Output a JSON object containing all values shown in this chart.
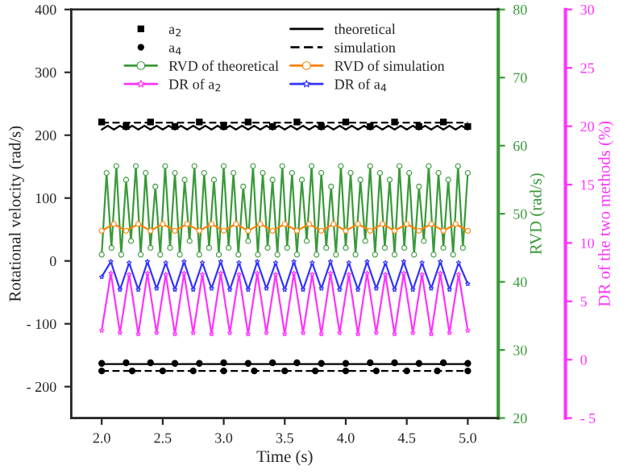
{
  "chart_data": {
    "type": "line",
    "xlabel": "Time (s)",
    "ylabel": "Rotational velocity (rad/s)",
    "y2label": "RVD (rad/s)",
    "y3label": "DR of the two methods (%)",
    "xlim": [
      1.75,
      5.25
    ],
    "xticks": [
      {
        "value": 2,
        "label": "2.0"
      },
      {
        "value": 2.5,
        "label": "2.5"
      },
      {
        "value": 3,
        "label": "3.0"
      },
      {
        "value": 3.5,
        "label": "3.5"
      },
      {
        "value": 4,
        "label": "4.0"
      },
      {
        "value": 4.5,
        "label": "4.5"
      },
      {
        "value": 5,
        "label": "5.0"
      }
    ],
    "ylim": [
      -250,
      400
    ],
    "yticks": [
      {
        "value": -200,
        "label": "- 200"
      },
      {
        "value": -100,
        "label": "- 100"
      },
      0,
      100,
      200,
      300,
      400
    ],
    "y2lim": [
      20,
      80
    ],
    "y2ticks": [
      20,
      30,
      40,
      50,
      60,
      70,
      80
    ],
    "y3lim": [
      -5,
      30
    ],
    "y3ticks": [
      {
        "value": -5,
        "label": "- 5"
      },
      0,
      5,
      10,
      15,
      20,
      25,
      30
    ],
    "legend": "top",
    "series": [
      {
        "name": "a$_{2}$",
        "type": "scatter",
        "marker": "square",
        "color": "#000000",
        "x": [
          2.0,
          2.2,
          2.4,
          2.6,
          2.8,
          3.0,
          3.2,
          3.4,
          3.6,
          3.8,
          4.0,
          4.2,
          4.4,
          4.6,
          4.8,
          5.0
        ],
        "values": [
          221,
          214,
          221,
          214,
          221,
          214,
          221,
          214,
          221,
          214,
          221,
          214,
          221,
          214,
          221,
          214
        ]
      },
      {
        "name": "a$_{4}$",
        "type": "scatter",
        "marker": "circle",
        "color": "#000000",
        "x": [
          2.0,
          2.2,
          2.4,
          2.6,
          2.8,
          3.0,
          3.2,
          3.4,
          3.6,
          3.8,
          4.0,
          4.2,
          4.4,
          4.6,
          4.8,
          5.0,
          2.0,
          2.25,
          2.5,
          2.75,
          3.0,
          3.25,
          3.5,
          3.75,
          4.0,
          4.25,
          4.5,
          4.75,
          5.0
        ],
        "values": [
          -163,
          -162,
          -162,
          -163,
          -163,
          -162,
          -163,
          -162,
          -162,
          -163,
          -163,
          -162,
          -162,
          -163,
          -162,
          -163,
          -175,
          -175,
          -175,
          -175,
          -175,
          -175,
          -175,
          -175,
          -175,
          -175,
          -175,
          -175,
          -175
        ]
      },
      {
        "name": "RVD of theoretical",
        "axis": "y2",
        "marker": "circle",
        "line_style": "solid",
        "color": "#3a9a3a",
        "x": [
          2.0,
          2.04,
          2.08,
          2.12,
          2.16,
          2.2,
          2.24,
          2.28,
          2.32,
          2.36,
          2.4,
          2.44,
          2.48,
          2.52,
          2.56,
          2.6,
          2.64,
          2.68,
          2.72,
          2.76,
          2.8,
          2.84,
          2.88,
          2.92,
          2.96,
          3.0,
          3.04,
          3.08,
          3.12,
          3.16,
          3.2,
          3.24,
          3.28,
          3.32,
          3.36,
          3.4,
          3.44,
          3.48,
          3.52,
          3.56,
          3.6,
          3.64,
          3.68,
          3.72,
          3.76,
          3.8,
          3.84,
          3.88,
          3.92,
          3.96,
          4.0,
          4.04,
          4.08,
          4.12,
          4.16,
          4.2,
          4.24,
          4.28,
          4.32,
          4.36,
          4.4,
          4.44,
          4.48,
          4.52,
          4.56,
          4.6,
          4.64,
          4.68,
          4.72,
          4.76,
          4.8,
          4.84,
          4.88,
          4.92,
          4.96,
          5.0
        ],
        "values": [
          44,
          56,
          45,
          57,
          44,
          55,
          46,
          57,
          44,
          56,
          45,
          54,
          44,
          57,
          45,
          56,
          44,
          55,
          46,
          57,
          44,
          56,
          45,
          55,
          44,
          57,
          45,
          56,
          44,
          54,
          46,
          57,
          44,
          56,
          45,
          55,
          44,
          57,
          45,
          56,
          44,
          55,
          46,
          57,
          44,
          56,
          45,
          54,
          44,
          57,
          45,
          56,
          44,
          55,
          46,
          57,
          44,
          56,
          45,
          55,
          44,
          57,
          45,
          56,
          44,
          54,
          46,
          57,
          44,
          56,
          45,
          55,
          44,
          57,
          45,
          56
        ]
      },
      {
        "name": "DR of a$_{2}$",
        "axis": "y3",
        "marker": "star",
        "line_style": "solid",
        "color": "#ff33ff",
        "x": [
          2.0,
          2.075,
          2.15,
          2.225,
          2.3,
          2.375,
          2.45,
          2.525,
          2.6,
          2.675,
          2.75,
          2.825,
          2.9,
          2.975,
          3.05,
          3.125,
          3.2,
          3.275,
          3.35,
          3.425,
          3.5,
          3.575,
          3.65,
          3.725,
          3.8,
          3.875,
          3.95,
          4.025,
          4.1,
          4.175,
          4.25,
          4.325,
          4.4,
          4.475,
          4.55,
          4.625,
          4.7,
          4.775,
          4.85,
          4.925,
          5.0
        ],
        "values": [
          2.5,
          7.4,
          2.3,
          7.3,
          2.2,
          7.4,
          2.3,
          7.3,
          2.2,
          7.4,
          2.3,
          7.3,
          2.2,
          7.4,
          2.3,
          7.3,
          2.2,
          7.4,
          2.3,
          7.3,
          2.2,
          7.4,
          2.3,
          7.3,
          2.2,
          7.4,
          2.3,
          7.3,
          2.2,
          7.4,
          2.3,
          7.3,
          2.2,
          7.4,
          2.3,
          7.3,
          2.2,
          7.4,
          2.3,
          7.3,
          2.5
        ]
      },
      {
        "name": "theoretical",
        "marker": "none",
        "line_style": "solid",
        "color": "#000000",
        "x": [
          2.0,
          2.05,
          2.1,
          2.15,
          2.2,
          2.25,
          2.3,
          2.35,
          2.4,
          2.45,
          2.5,
          2.55,
          2.6,
          2.65,
          2.7,
          2.75,
          2.8,
          2.85,
          2.9,
          2.95,
          3.0,
          3.05,
          3.1,
          3.15,
          3.2,
          3.25,
          3.3,
          3.35,
          3.4,
          3.45,
          3.5,
          3.55,
          3.6,
          3.65,
          3.7,
          3.75,
          3.8,
          3.85,
          3.9,
          3.95,
          4.0,
          4.05,
          4.1,
          4.15,
          4.2,
          4.25,
          4.3,
          4.35,
          4.4,
          4.45,
          4.5,
          4.55,
          4.6,
          4.65,
          4.7,
          4.75,
          4.8,
          4.85,
          4.9,
          4.95,
          5.0
        ],
        "values": [
          209,
          215,
          209,
          215,
          209,
          215,
          209,
          215,
          209,
          215,
          209,
          215,
          209,
          215,
          209,
          215,
          209,
          215,
          209,
          215,
          209,
          215,
          209,
          215,
          209,
          215,
          209,
          215,
          209,
          215,
          209,
          215,
          209,
          215,
          209,
          215,
          209,
          215,
          209,
          215,
          209,
          215,
          209,
          215,
          209,
          215,
          209,
          215,
          209,
          215,
          209,
          215,
          209,
          215,
          209,
          215,
          209,
          215,
          209,
          215,
          209
        ]
      },
      {
        "name": "simulation",
        "marker": "none",
        "line_style": "dashed",
        "color": "#000000",
        "x": [
          2.0,
          2.25,
          2.5,
          2.75,
          3.0,
          3.25,
          3.5,
          3.75,
          4.0,
          4.25,
          4.5,
          4.75,
          5.0
        ],
        "values": [
          220,
          220,
          220,
          220,
          220,
          220,
          220,
          220,
          220,
          220,
          220,
          220,
          220
        ]
      },
      {
        "name": "RVD of simulation",
        "axis": "y2",
        "marker": "circle",
        "line_style": "solid",
        "color": "#ff8000",
        "x": [
          2.0,
          2.1,
          2.2,
          2.3,
          2.4,
          2.5,
          2.6,
          2.7,
          2.8,
          2.9,
          3.0,
          3.1,
          3.2,
          3.3,
          3.4,
          3.5,
          3.6,
          3.7,
          3.8,
          3.9,
          4.0,
          4.1,
          4.2,
          4.3,
          4.4,
          4.5,
          4.6,
          4.7,
          4.8,
          4.9,
          5.0
        ],
        "values": [
          47.5,
          48.5,
          47.5,
          48.5,
          47.5,
          48.5,
          47.5,
          48.5,
          47.5,
          48.5,
          47.5,
          48.5,
          47.5,
          48.5,
          47.5,
          48.5,
          47.5,
          48.5,
          47.5,
          48.5,
          47.5,
          48.5,
          47.5,
          48.5,
          47.5,
          48.5,
          47.5,
          48.5,
          47.5,
          48.5,
          47.5
        ]
      },
      {
        "name": "DR of a$_{4}$",
        "axis": "y3",
        "marker": "star",
        "line_style": "solid",
        "color": "#3333ff",
        "x": [
          2.0,
          2.075,
          2.15,
          2.225,
          2.3,
          2.375,
          2.45,
          2.525,
          2.6,
          2.675,
          2.75,
          2.825,
          2.9,
          2.975,
          3.05,
          3.125,
          3.2,
          3.275,
          3.35,
          3.425,
          3.5,
          3.575,
          3.65,
          3.725,
          3.8,
          3.875,
          3.95,
          4.025,
          4.1,
          4.175,
          4.25,
          4.325,
          4.4,
          4.475,
          4.55,
          4.625,
          4.7,
          4.775,
          4.85,
          4.925,
          5.0
        ],
        "values": [
          7.1,
          8.4,
          6.0,
          8.3,
          6.0,
          8.4,
          6.1,
          8.3,
          6.0,
          8.4,
          6.0,
          8.3,
          6.1,
          8.4,
          6.0,
          8.3,
          6.0,
          8.4,
          6.1,
          8.3,
          6.0,
          8.4,
          6.0,
          8.3,
          6.1,
          8.4,
          6.0,
          8.3,
          6.0,
          8.4,
          6.1,
          8.3,
          6.0,
          8.4,
          6.0,
          8.3,
          6.1,
          8.4,
          6.0,
          8.3,
          6.5
        ]
      },
      {
        "name": null,
        "marker": "none",
        "line_style": "solid",
        "color": "#000000",
        "x": [
          2.0,
          2.25,
          2.5,
          2.75,
          3.0,
          3.25,
          3.5,
          3.75,
          4.0,
          4.25,
          4.5,
          4.75,
          5.0
        ],
        "values": [
          -164,
          -164,
          -164,
          -164,
          -164,
          -164,
          -164,
          -164,
          -164,
          -164,
          -164,
          -164,
          -164
        ]
      },
      {
        "name": null,
        "marker": "none",
        "line_style": "dashed",
        "color": "#000000",
        "x": [
          2.0,
          2.25,
          2.5,
          2.75,
          3.0,
          3.25,
          3.5,
          3.75,
          4.0,
          4.25,
          4.5,
          4.75,
          5.0
        ],
        "values": [
          -175,
          -175,
          -175,
          -175,
          -175,
          -175,
          -175,
          -175,
          -175,
          -175,
          -175,
          -175,
          -175
        ]
      }
    ]
  }
}
